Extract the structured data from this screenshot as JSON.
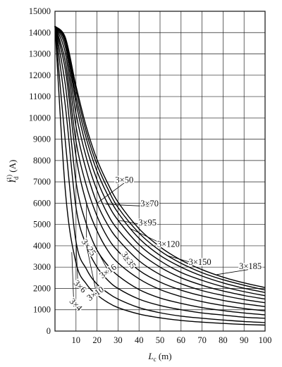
{
  "chart_data": {
    "type": "line",
    "xlabel": "L_c (m)",
    "xlabel_main": "L",
    "xlabel_sub": "c",
    "xlabel_unit": " (m)",
    "ylabel": "I_d^(1) (A)",
    "ylabel_main": "I",
    "ylabel_sub": "d",
    "ylabel_sup": "(1)",
    "ylabel_unit": " (A)",
    "xlim": [
      0,
      100
    ],
    "ylim": [
      0,
      15000
    ],
    "xticks": [
      10,
      20,
      30,
      40,
      50,
      60,
      70,
      80,
      90,
      100
    ],
    "yticks": [
      0,
      1000,
      2000,
      3000,
      4000,
      5000,
      6000,
      7000,
      8000,
      9000,
      10000,
      11000,
      12000,
      13000,
      14000,
      15000
    ],
    "grid": true,
    "x": [
      0,
      5,
      10,
      15,
      20,
      25,
      30,
      40,
      50,
      60,
      70,
      80,
      90,
      100
    ],
    "series": [
      {
        "name": "3×4",
        "values": [
          14300,
          6500,
          3200,
          2200,
          1700,
          1350,
          1100,
          800,
          620,
          500,
          420,
          360,
          310,
          280
        ]
      },
      {
        "name": "3×6",
        "values": [
          14300,
          8800,
          4200,
          2900,
          2200,
          1800,
          1500,
          1100,
          860,
          700,
          600,
          520,
          450,
          400
        ]
      },
      {
        "name": "3×10",
        "values": [
          14300,
          10500,
          5800,
          4000,
          3000,
          2400,
          2000,
          1500,
          1200,
          1000,
          850,
          750,
          650,
          600
        ]
      },
      {
        "name": "3×16",
        "values": [
          14300,
          11500,
          7000,
          5000,
          3800,
          3100,
          2600,
          1950,
          1550,
          1300,
          1100,
          960,
          850,
          760
        ]
      },
      {
        "name": "3×25",
        "values": [
          14300,
          12200,
          8200,
          6000,
          4700,
          3800,
          3200,
          2450,
          1950,
          1620,
          1380,
          1200,
          1060,
          950
        ]
      },
      {
        "name": "3×35",
        "values": [
          14300,
          12600,
          8900,
          6800,
          5400,
          4400,
          3750,
          2850,
          2300,
          1920,
          1650,
          1440,
          1280,
          1150
        ]
      },
      {
        "name": "3×50",
        "values": [
          14300,
          13000,
          9600,
          7500,
          6000,
          5000,
          4300,
          3300,
          2650,
          2220,
          1900,
          1670,
          1480,
          1330
        ]
      },
      {
        "name": "3×70",
        "values": [
          14300,
          13300,
          10200,
          8100,
          6600,
          5500,
          4750,
          3700,
          3000,
          2500,
          2150,
          1880,
          1670,
          1500
        ]
      },
      {
        "name": "3×95",
        "values": [
          14300,
          13500,
          10700,
          8600,
          7100,
          6000,
          5200,
          4050,
          3300,
          2750,
          2380,
          2080,
          1850,
          1660
        ]
      },
      {
        "name": "3×120",
        "values": [
          14300,
          13600,
          11000,
          9000,
          7500,
          6400,
          5550,
          4350,
          3550,
          3000,
          2580,
          2260,
          2010,
          1810
        ]
      },
      {
        "name": "3×150",
        "values": [
          14300,
          13700,
          11300,
          9300,
          7800,
          6700,
          5800,
          4600,
          3770,
          3180,
          2740,
          2410,
          2150,
          1930
        ]
      },
      {
        "name": "3×185",
        "values": [
          14300,
          13750,
          11500,
          9550,
          8050,
          6950,
          6050,
          4800,
          3950,
          3330,
          2880,
          2530,
          2260,
          2040
        ]
      }
    ],
    "annotations": [
      {
        "text": "3×50",
        "x": 33,
        "y": 6950,
        "rotation": 0,
        "target_series": "3×50",
        "target_x": 20,
        "target_y": 6000
      },
      {
        "text": "3×70",
        "x": 45,
        "y": 5850,
        "rotation": 0,
        "target_series": "3×70",
        "target_x": 24,
        "target_y": 5950
      },
      {
        "text": "3×95",
        "x": 44,
        "y": 4950,
        "rotation": 0,
        "target_series": "3×95",
        "target_x": 30,
        "target_y": 5200
      },
      {
        "text": "3×120",
        "x": 54,
        "y": 3950,
        "rotation": 0,
        "target_series": "3×120",
        "target_x": 36,
        "target_y": 4800
      },
      {
        "text": "3×150",
        "x": 69,
        "y": 3100,
        "rotation": 0,
        "target_series": "3×150",
        "target_x": 53,
        "target_y": 3550
      },
      {
        "text": "3×185",
        "x": 93,
        "y": 2900,
        "rotation": 0,
        "target_series": "3×185",
        "target_x": 77,
        "target_y": 2650
      },
      {
        "text": "3×25",
        "x": 15,
        "y": 3850,
        "rotation": 55,
        "target_series": "3×25",
        "target_x": 15,
        "target_y": 6000
      },
      {
        "text": "3×35",
        "x": 34,
        "y": 3250,
        "rotation": 55,
        "target_series": "3×35",
        "target_x": 30,
        "target_y": 3750
      },
      {
        "text": "3×16",
        "x": 26,
        "y": 2700,
        "rotation": -35,
        "target_series": "3×16",
        "target_x": 20,
        "target_y": 3800
      },
      {
        "text": "3×10",
        "x": 20,
        "y": 1650,
        "rotation": -35,
        "target_series": "3×10",
        "target_x": 15,
        "target_y": 4000
      },
      {
        "text": "3×6",
        "x": 11,
        "y": 2000,
        "rotation": 45,
        "target_series": "3×6",
        "target_x": 10,
        "target_y": 4200
      },
      {
        "text": "3×4",
        "x": 9,
        "y": 1150,
        "rotation": 45,
        "target_series": "3×4",
        "target_x": 8,
        "target_y": 3700
      }
    ]
  }
}
